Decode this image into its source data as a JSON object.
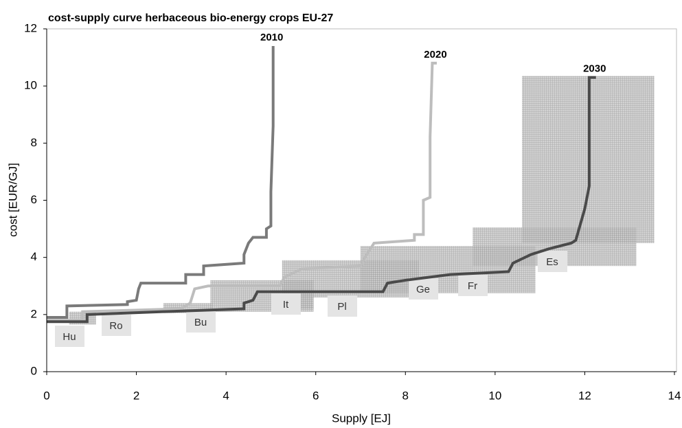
{
  "chart_data": {
    "type": "line",
    "title": "cost-supply curve herbaceous bio-energy crops EU-27",
    "x_label": "Supply [EJ]",
    "y_label": "cost [EUR/GJ]",
    "xlim": [
      0,
      14
    ],
    "xticks": [
      0,
      2,
      4,
      6,
      8,
      10,
      12,
      14
    ],
    "ylim": [
      0,
      12
    ],
    "yticks": [
      0,
      2,
      4,
      6,
      8,
      10,
      12
    ],
    "series": [
      {
        "name": "2010",
        "color": "#7a7a7a",
        "x": [
          0,
          0.45,
          0.45,
          1.8,
          1.8,
          2.0,
          2.05,
          2.1,
          3.1,
          3.1,
          3.5,
          3.5,
          4.4,
          4.4,
          4.5,
          4.6,
          4.9,
          4.9,
          5.0,
          5.0,
          5.05,
          5.05
        ],
        "values": [
          1.9,
          1.9,
          2.3,
          2.35,
          2.45,
          2.5,
          2.9,
          3.1,
          3.1,
          3.4,
          3.4,
          3.7,
          3.8,
          4.1,
          4.5,
          4.7,
          4.7,
          5.0,
          5.1,
          6.3,
          8.6,
          11.4
        ]
      },
      {
        "name": "2020",
        "color": "#bdbdbd",
        "x": [
          0,
          0.8,
          0.8,
          3.0,
          3.2,
          3.3,
          3.6,
          5.2,
          5.3,
          5.7,
          7.0,
          7.1,
          7.3,
          8.2,
          8.2,
          8.4,
          8.4,
          8.55,
          8.55,
          8.6,
          8.7
        ],
        "values": [
          1.8,
          1.8,
          2.1,
          2.2,
          2.4,
          2.9,
          3.0,
          3.0,
          3.3,
          3.6,
          3.7,
          4.0,
          4.5,
          4.6,
          4.8,
          4.8,
          6.0,
          6.1,
          8.2,
          10.8,
          10.8
        ]
      },
      {
        "name": "2030",
        "color": "#4a4a4a",
        "x": [
          0,
          0.9,
          0.9,
          2.6,
          4.4,
          4.4,
          4.6,
          4.7,
          7.5,
          7.6,
          8.0,
          8.5,
          9.0,
          10.3,
          10.4,
          10.8,
          11.2,
          11.7,
          11.8,
          12.0,
          12.1,
          12.1,
          12.25
        ],
        "values": [
          1.75,
          1.75,
          2.0,
          2.1,
          2.2,
          2.4,
          2.5,
          2.8,
          2.8,
          3.1,
          3.2,
          3.3,
          3.4,
          3.5,
          3.8,
          4.1,
          4.3,
          4.5,
          4.6,
          5.7,
          6.5,
          10.3,
          10.3
        ]
      }
    ],
    "ranges": [
      {
        "x0": 10.6,
        "x1": 13.55,
        "y0": 4.5,
        "y1": 10.35
      },
      {
        "x0": 9.5,
        "x1": 13.15,
        "y0": 3.7,
        "y1": 5.05
      },
      {
        "x0": 7.0,
        "x1": 10.9,
        "y0": 2.75,
        "y1": 4.4
      },
      {
        "x0": 5.25,
        "x1": 8.3,
        "y0": 2.6,
        "y1": 3.9
      },
      {
        "x0": 5.25,
        "x1": 5.95,
        "y0": 2.2,
        "y1": 3.2
      },
      {
        "x0": 3.65,
        "x1": 5.95,
        "y0": 2.1,
        "y1": 3.2
      },
      {
        "x0": 2.6,
        "x1": 3.7,
        "y0": 2.05,
        "y1": 2.4
      },
      {
        "x0": 0.5,
        "x1": 1.1,
        "y0": 1.65,
        "y1": 2.1
      }
    ],
    "annotations": [
      "Hu",
      "Ro",
      "Bu",
      "It",
      "Pl",
      "Ge",
      "Fr",
      "Es"
    ]
  }
}
